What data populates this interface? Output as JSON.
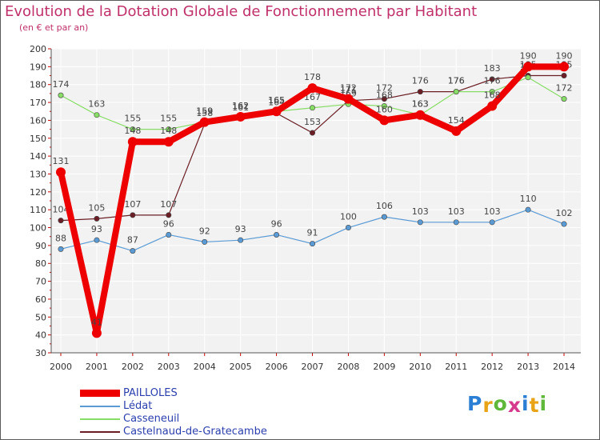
{
  "chart_data": {
    "type": "line",
    "title": "Evolution de la Dotation Globale de Fonctionnement par Habitant",
    "subtitle": "(en € et par an)",
    "xlabel": "",
    "ylabel": "",
    "ylim": [
      30,
      200
    ],
    "yticks": [
      30,
      40,
      50,
      60,
      70,
      80,
      90,
      100,
      110,
      120,
      130,
      140,
      150,
      160,
      170,
      180,
      190,
      200
    ],
    "categories": [
      "2000",
      "2001",
      "2002",
      "2003",
      "2004",
      "2005",
      "2006",
      "2007",
      "2008",
      "2009",
      "2010",
      "2011",
      "2012",
      "2013",
      "2014"
    ],
    "grid": true,
    "legend_position": "bottom-left",
    "series": [
      {
        "name": "Castelnaud-de-Gratecambe",
        "color": "#6b1e25",
        "values": [
          104,
          105,
          107,
          107,
          158,
          161,
          164,
          153,
          171,
          172,
          176,
          176,
          183,
          185,
          185
        ]
      },
      {
        "name": "Casseneuil",
        "color": "#88dd66",
        "values": [
          174,
          163,
          155,
          155,
          159,
          162,
          165,
          167,
          169,
          168,
          163,
          176,
          176,
          184,
          172
        ]
      },
      {
        "name": "Lédat",
        "color": "#5b9bd5",
        "values": [
          88,
          93,
          87,
          96,
          92,
          93,
          96,
          91,
          100,
          106,
          103,
          103,
          103,
          110,
          102
        ]
      },
      {
        "name": "PAILLOLES",
        "color": "#ee0000",
        "values": [
          131,
          41,
          148,
          148,
          159,
          162,
          165,
          178,
          172,
          160,
          163,
          154,
          168,
          190,
          190
        ]
      }
    ]
  },
  "legend": [
    {
      "label": "PAILLOLES",
      "color": "#ee0000"
    },
    {
      "label": "Lédat",
      "color": "#5b9bd5"
    },
    {
      "label": "Casseneuil",
      "color": "#88dd66"
    },
    {
      "label": "Castelnaud-de-Gratecambe",
      "color": "#6b1e25"
    }
  ],
  "logo": {
    "letters": [
      "P",
      "r",
      "o",
      "x",
      "i",
      "t",
      "i"
    ],
    "colors": [
      "#2a7fd4",
      "#e8a317",
      "#5fb83a",
      "#d63a8c",
      "#2a7fd4",
      "#e8a317",
      "#5fb83a"
    ]
  }
}
